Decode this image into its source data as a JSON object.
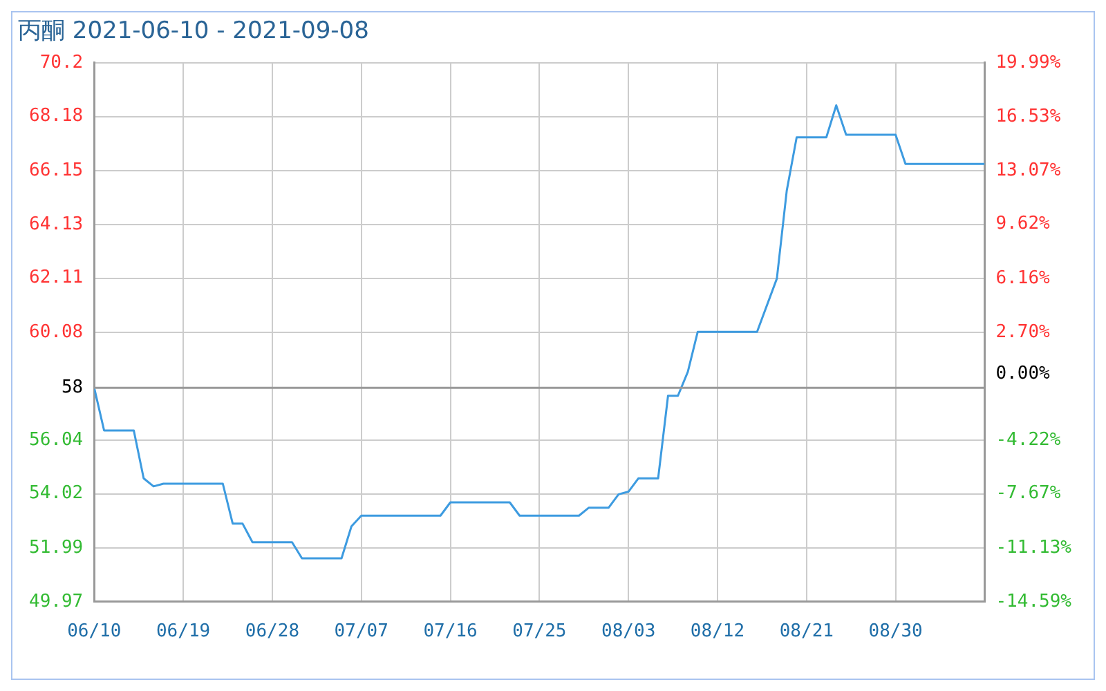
{
  "chart_data": {
    "type": "line",
    "title": "丙酮 2021-06-10 - 2021-09-08",
    "x": [
      "2021-06-10",
      "2021-06-11",
      "2021-06-14",
      "2021-06-15",
      "2021-06-16",
      "2021-06-17",
      "2021-06-23",
      "2021-06-24",
      "2021-06-25",
      "2021-06-26",
      "2021-06-30",
      "2021-07-01",
      "2021-07-05",
      "2021-07-06",
      "2021-07-07",
      "2021-07-15",
      "2021-07-16",
      "2021-07-22",
      "2021-07-23",
      "2021-07-29",
      "2021-07-30",
      "2021-08-01",
      "2021-08-02",
      "2021-08-03",
      "2021-08-04",
      "2021-08-06",
      "2021-08-07",
      "2021-08-08",
      "2021-08-09",
      "2021-08-10",
      "2021-08-16",
      "2021-08-18",
      "2021-08-19",
      "2021-08-20",
      "2021-08-23",
      "2021-08-24",
      "2021-08-25",
      "2021-08-30",
      "2021-08-31",
      "2021-09-08"
    ],
    "series": [
      {
        "color": "#3d9be0",
        "values": [
          58,
          56.4,
          56.4,
          54.6,
          54.3,
          54.4,
          54.4,
          52.9,
          52.9,
          52.2,
          52.2,
          51.6,
          51.6,
          52.8,
          53.2,
          53.2,
          53.7,
          53.7,
          53.2,
          53.2,
          53.5,
          53.5,
          54.0,
          54.1,
          54.6,
          54.6,
          57.7,
          57.7,
          58.6,
          60.1,
          60.1,
          62.1,
          65.4,
          67.4,
          67.4,
          68.6,
          67.5,
          67.5,
          66.4,
          66.4
        ]
      }
    ],
    "xlim": [
      "2021-06-10",
      "2021-09-08"
    ],
    "xticks": [
      {
        "value": "2021-06-10",
        "label": "06/10"
      },
      {
        "value": "2021-06-19",
        "label": "06/19"
      },
      {
        "value": "2021-06-28",
        "label": "06/28"
      },
      {
        "value": "2021-07-07",
        "label": "07/07"
      },
      {
        "value": "2021-07-16",
        "label": "07/16"
      },
      {
        "value": "2021-07-25",
        "label": "07/25"
      },
      {
        "value": "2021-08-03",
        "label": "08/03"
      },
      {
        "value": "2021-08-12",
        "label": "08/12"
      },
      {
        "value": "2021-08-21",
        "label": "08/21"
      },
      {
        "value": "2021-08-30",
        "label": "08/30"
      }
    ],
    "ylim": [
      49.97,
      70.2
    ],
    "yticks": [
      49.97,
      51.99,
      54.02,
      56.04,
      58,
      60.08,
      62.11,
      64.13,
      66.15,
      68.18,
      70.2
    ],
    "y2lim": [
      -14.59,
      19.99
    ],
    "y2ticks": [
      {
        "value": -14.59,
        "label": "-14.59%"
      },
      {
        "value": -11.13,
        "label": "-11.13%"
      },
      {
        "value": -7.67,
        "label": "-7.67%"
      },
      {
        "value": -4.22,
        "label": "-4.22%"
      },
      {
        "value": 0,
        "label": "0.00%"
      },
      {
        "value": 2.7,
        "label": "2.70%"
      },
      {
        "value": 6.16,
        "label": "6.16%"
      },
      {
        "value": 9.62,
        "label": "9.62%"
      },
      {
        "value": 13.07,
        "label": "13.07%"
      },
      {
        "value": 16.53,
        "label": "16.53%"
      },
      {
        "value": 19.99,
        "label": "19.99%"
      }
    ],
    "ref_lines": [
      {
        "axis": "y",
        "value": 58,
        "color": "#999999"
      }
    ],
    "grid": true,
    "legend": false,
    "marker": "none",
    "line_style": "solid"
  }
}
